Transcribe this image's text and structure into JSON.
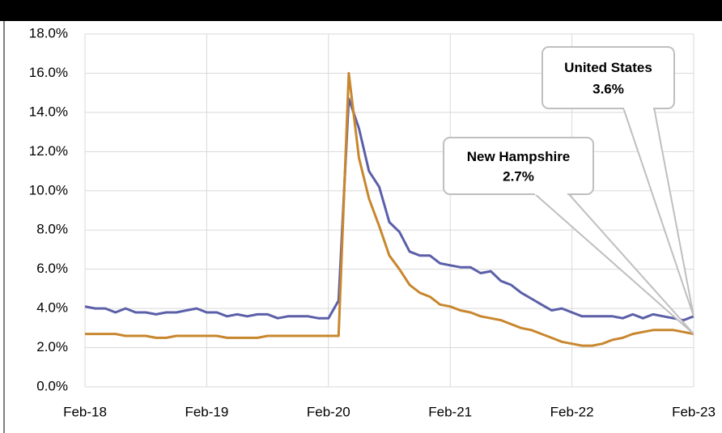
{
  "chart_data": {
    "type": "line",
    "categories": [
      "Feb-18",
      null,
      null,
      null,
      null,
      null,
      null,
      null,
      null,
      null,
      null,
      null,
      "Feb-19",
      null,
      null,
      null,
      null,
      null,
      null,
      null,
      null,
      null,
      null,
      null,
      "Feb-20",
      null,
      null,
      null,
      null,
      null,
      null,
      null,
      null,
      null,
      null,
      null,
      "Feb-21",
      null,
      null,
      null,
      null,
      null,
      null,
      null,
      null,
      null,
      null,
      null,
      "Feb-22",
      null,
      null,
      null,
      null,
      null,
      null,
      null,
      null,
      null,
      null,
      null,
      "Feb-23"
    ],
    "series": [
      {
        "name": "United States",
        "color": "#5b5fa8",
        "values": [
          4.1,
          4.0,
          4.0,
          3.8,
          4.0,
          3.8,
          3.8,
          3.7,
          3.8,
          3.8,
          3.9,
          4.0,
          3.8,
          3.8,
          3.6,
          3.7,
          3.6,
          3.7,
          3.7,
          3.5,
          3.6,
          3.6,
          3.6,
          3.5,
          3.5,
          4.4,
          14.7,
          13.2,
          11.0,
          10.2,
          8.4,
          7.9,
          6.9,
          6.7,
          6.7,
          6.3,
          6.2,
          6.1,
          6.1,
          5.8,
          5.9,
          5.4,
          5.2,
          4.8,
          4.5,
          4.2,
          3.9,
          4.0,
          3.8,
          3.6,
          3.6,
          3.6,
          3.6,
          3.5,
          3.7,
          3.5,
          3.7,
          3.6,
          3.5,
          3.4,
          3.6
        ],
        "value_labels": {
          "60": "3.6%"
        }
      },
      {
        "name": "New Hampshire",
        "color": "#c8872e",
        "values": [
          2.7,
          2.7,
          2.7,
          2.7,
          2.6,
          2.6,
          2.6,
          2.5,
          2.5,
          2.6,
          2.6,
          2.6,
          2.6,
          2.6,
          2.5,
          2.5,
          2.5,
          2.5,
          2.6,
          2.6,
          2.6,
          2.6,
          2.6,
          2.6,
          2.6,
          2.6,
          16.0,
          11.7,
          9.6,
          8.2,
          6.7,
          6.0,
          5.2,
          4.8,
          4.6,
          4.2,
          4.1,
          3.9,
          3.8,
          3.6,
          3.5,
          3.4,
          3.2,
          3.0,
          2.9,
          2.7,
          2.5,
          2.3,
          2.2,
          2.1,
          2.1,
          2.2,
          2.4,
          2.5,
          2.7,
          2.8,
          2.9,
          2.9,
          2.9,
          2.8,
          2.7
        ],
        "value_labels": {
          "60": "2.7%"
        }
      }
    ],
    "ylim": [
      0,
      18
    ],
    "yticks": [
      {
        "value": 0,
        "label": "0.0%"
      },
      {
        "value": 2,
        "label": "2.0%"
      },
      {
        "value": 4,
        "label": "4.0%"
      },
      {
        "value": 6,
        "label": "6.0%"
      },
      {
        "value": 8,
        "label": "8.0%"
      },
      {
        "value": 10,
        "label": "10.0%"
      },
      {
        "value": 12,
        "label": "12.0%"
      },
      {
        "value": 14,
        "label": "14.0%"
      },
      {
        "value": 16,
        "label": "16.0%"
      },
      {
        "value": 18,
        "label": "18.0%"
      }
    ],
    "grid": true
  }
}
